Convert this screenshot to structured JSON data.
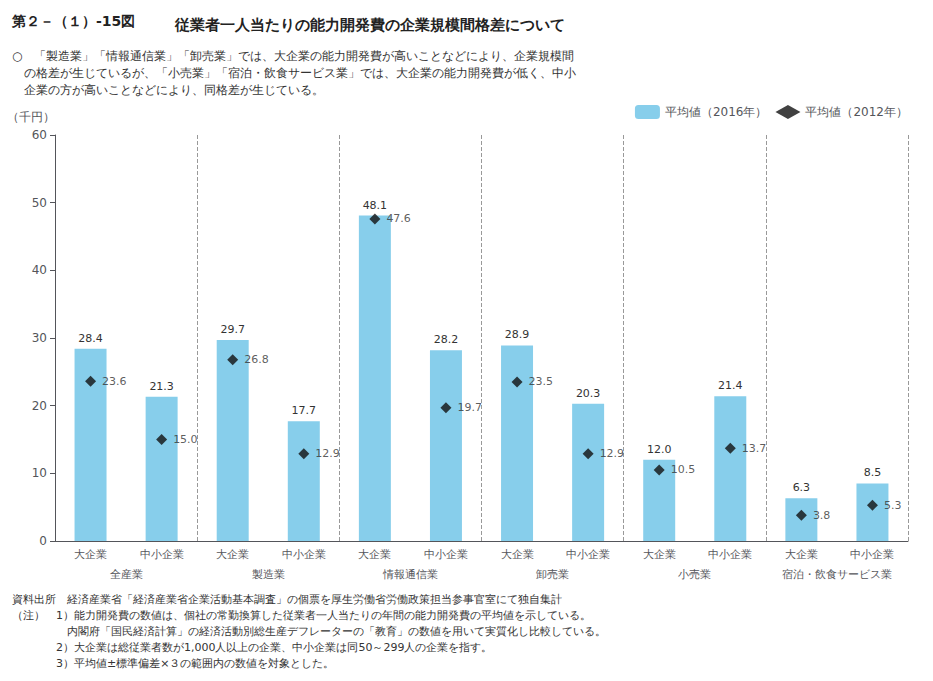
{
  "chart_data": {
    "type": "bar",
    "title": "従業者一人当たりの能力開発費の企業規模間格差について",
    "subtitle": "第２－（１）-15図",
    "description": [
      "○　「製造業」「情報通信業」「卸売業」では、大企業の能力開発費が高いことなどにより、企業規模間",
      "　の格差が生じているが、「小売業」「宿泊・飲食サービス業」では、大企業の能力開発費が低く、中小",
      "　企業の方が高いことなどにより、同格差が生じている。"
    ],
    "notes": [
      "資料出所　経済産業省「経済産業省企業活動基本調査」の個票を厚生労働省労働政策担当参事官室にて独自集計",
      "（注）　1）能力開発費の数値は、個社の常勤換算した従業者一人当たりの年間の能力開発費の平均値を示している。",
      "　　　　　内閣府「国民経済計算」の経済活動別総生産デフレーターの「教育」の数値を用いて実質化し比較している。",
      "　　　　2）大企業は総従業者数が1,000人以上の企業、中小企業は同50～299人の企業を指す。",
      "　　　　3）平均値±標準偏差×３の範囲内の数値を対象とした。"
    ],
    "ylabel": "（千円）",
    "categories": [
      "大企業",
      "中小企業",
      "大企業",
      "中小企業",
      "大企業",
      "中小企業",
      "大企業",
      "中小企業",
      "大企業",
      "中小企業",
      "大企業",
      "中小企業"
    ],
    "groups": [
      "全産業",
      "製造業",
      "情報通信業",
      "卸売業",
      "小売業",
      "宿泊・飲食サービス業"
    ],
    "series": [
      {
        "name": "平均値（2016年）",
        "type": "bar",
        "color": "#87CEEB",
        "values": [
          28.4,
          21.3,
          29.7,
          17.7,
          48.1,
          28.2,
          28.9,
          20.3,
          12.0,
          21.4,
          6.3,
          8.5
        ],
        "value_labels": [
          "28.4",
          "21.3",
          "29.7",
          "17.7",
          "48.1",
          "28.2",
          "28.9",
          "20.3",
          "12.0",
          "21.4",
          "6.3",
          "8.5"
        ]
      },
      {
        "name": "平均値（2012年）",
        "type": "scatter",
        "marker": "diamond",
        "color": "#111111",
        "values": [
          23.6,
          15.0,
          26.8,
          12.9,
          47.6,
          19.7,
          23.5,
          12.9,
          10.5,
          13.7,
          3.8,
          5.3
        ],
        "value_labels": [
          "23.6",
          "15.0",
          "26.8",
          "12.9",
          "47.6",
          "19.7",
          "23.5",
          "12.9",
          "10.5",
          "13.7",
          "3.8",
          "5.3"
        ]
      }
    ],
    "ylim": [
      0,
      60
    ],
    "yticks": [
      0,
      10,
      20,
      30,
      40,
      50,
      60
    ],
    "grid": false,
    "legend": "upper right",
    "data_labels": true
  }
}
